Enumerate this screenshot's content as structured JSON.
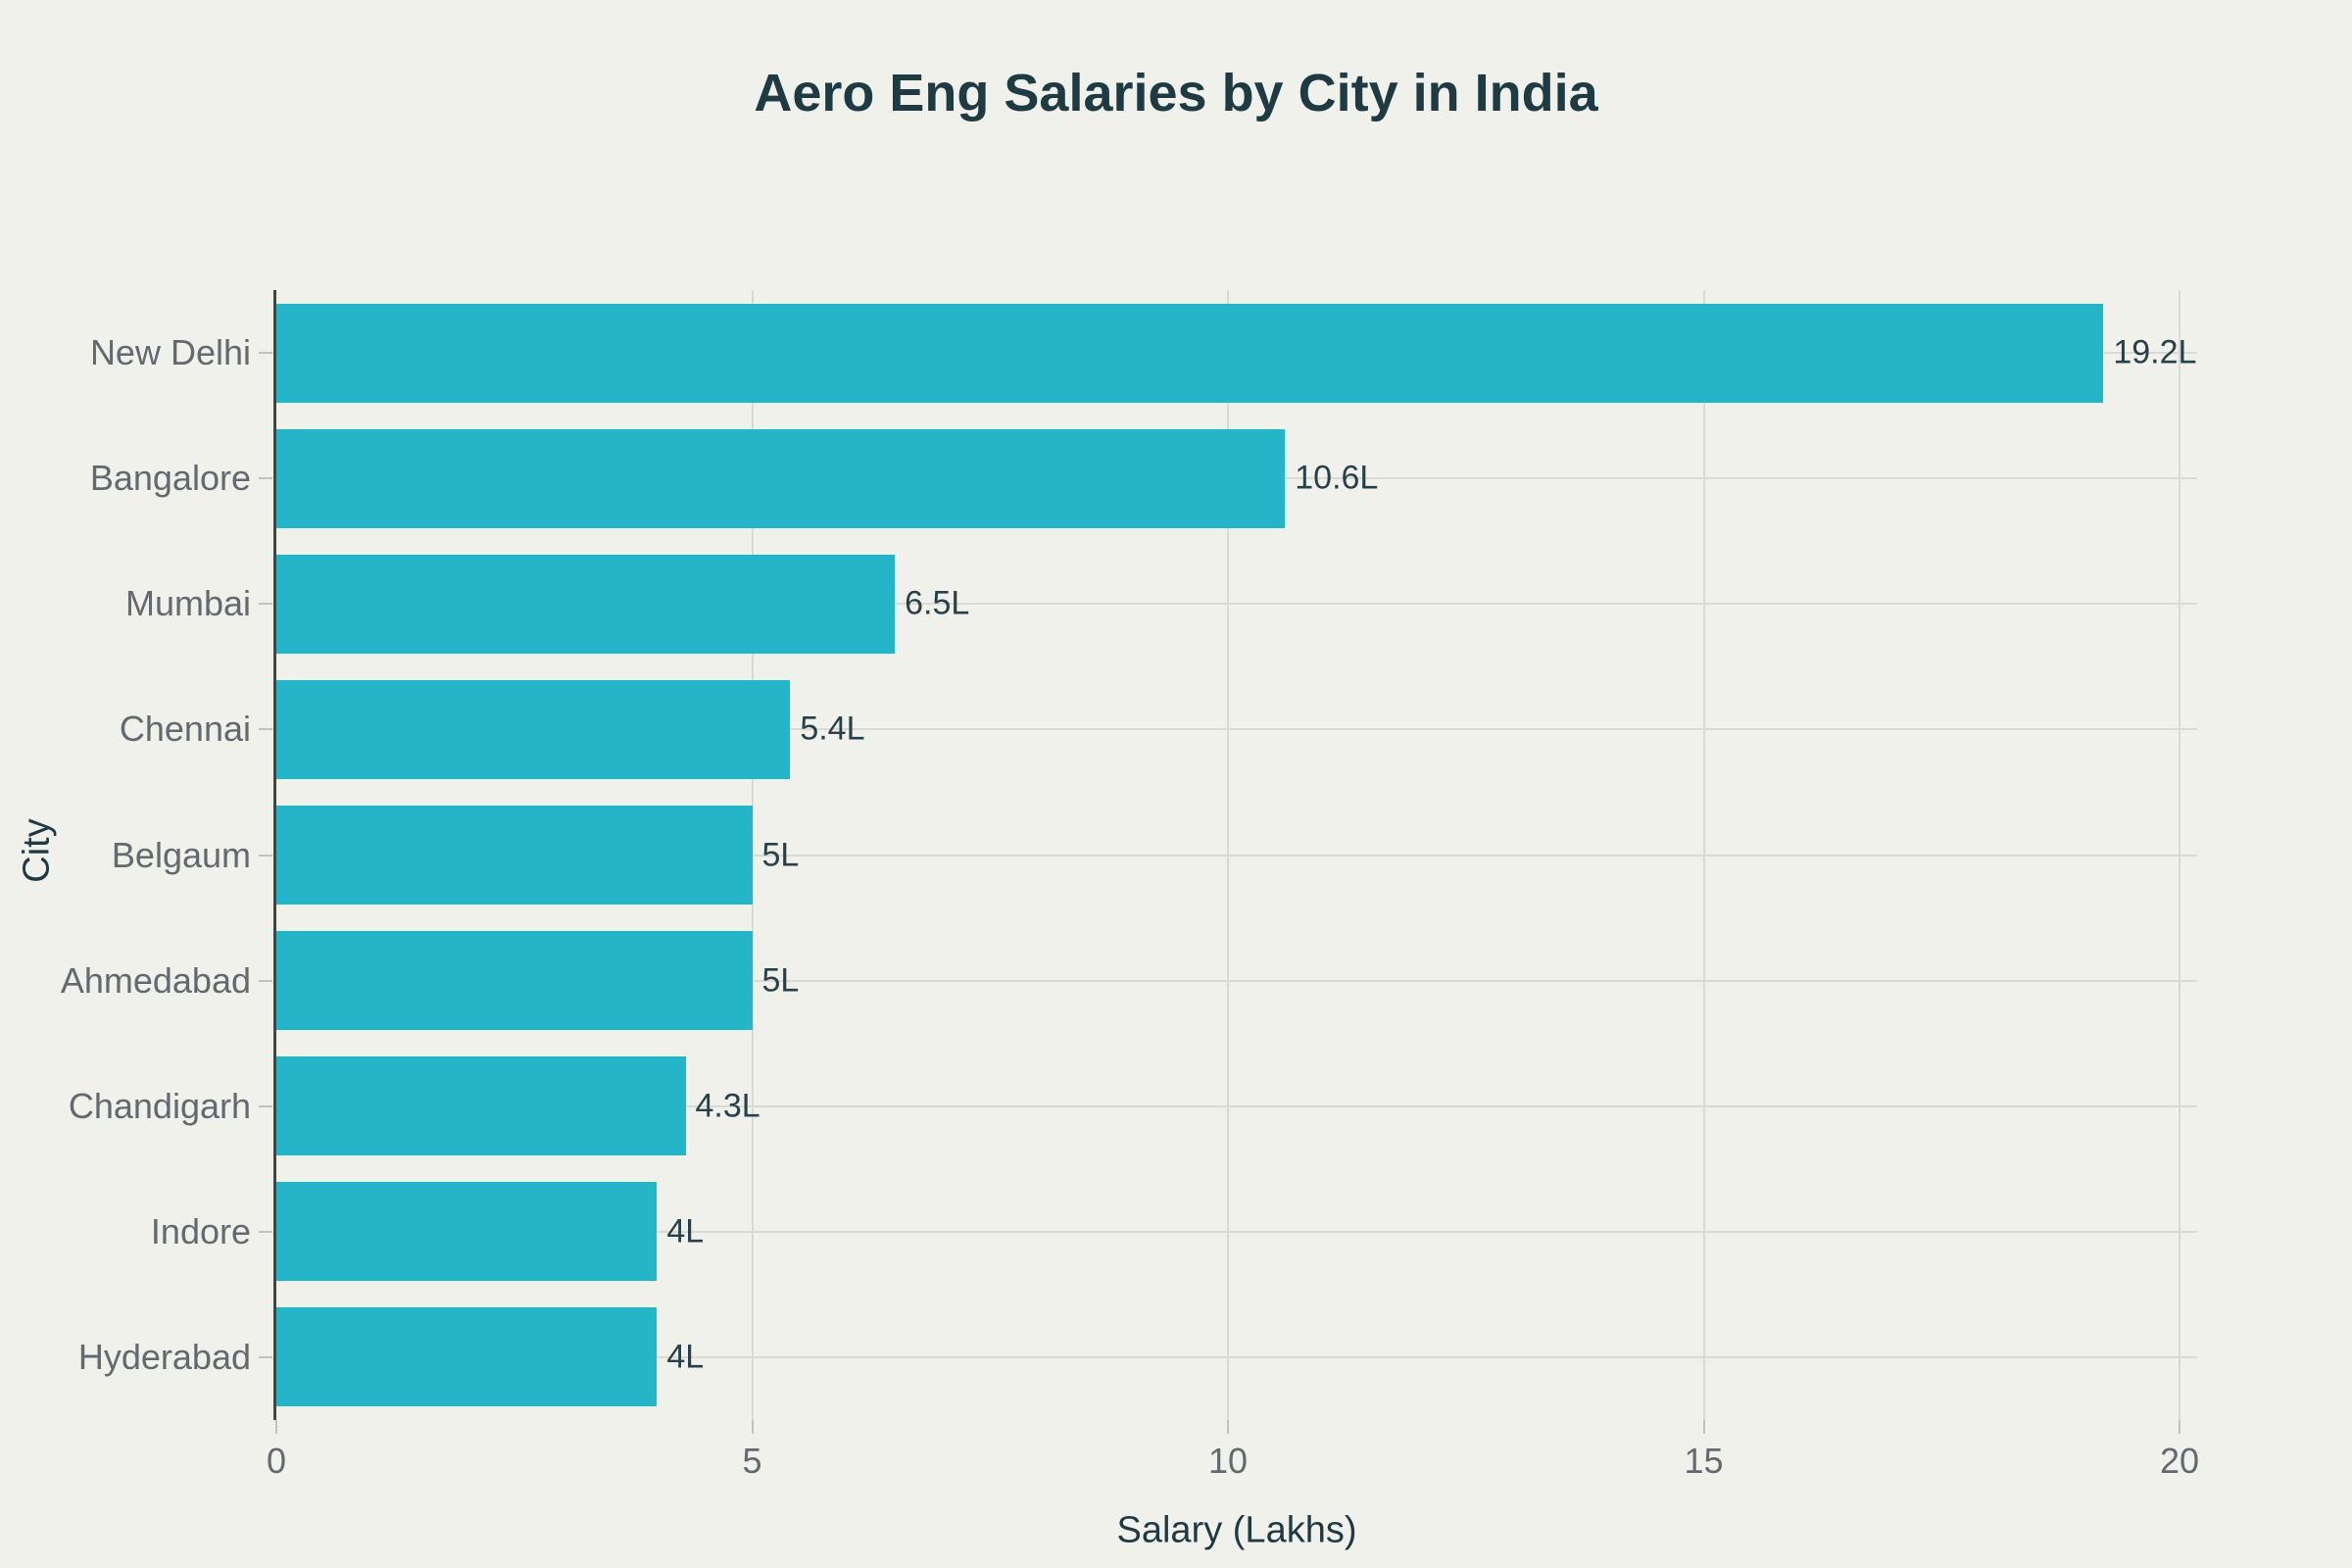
{
  "title": "Aero Eng Salaries by City in India",
  "colors": {
    "background": "#f1f1ec",
    "bar": "#24b5c9",
    "title_text": "#1e3b44",
    "axis_title_text": "#1e3b44",
    "tick_label_text": "#63696e",
    "value_label_text": "#27414a",
    "gridline": "#dadad4",
    "axis_line": "#45453f"
  },
  "chart_data": {
    "type": "bar",
    "orientation": "horizontal",
    "title": "Aero Eng Salaries by City in India",
    "xlabel": "Salary (Lakhs)",
    "ylabel": "City",
    "categories": [
      "New Delhi",
      "Bangalore",
      "Mumbai",
      "Chennai",
      "Belgaum",
      "Ahmedabad",
      "Chandigarh",
      "Indore",
      "Hyderabad"
    ],
    "values": [
      19.2,
      10.6,
      6.5,
      5.4,
      5,
      5,
      4.3,
      4,
      4
    ],
    "value_labels": [
      "19.2L",
      "10.6L",
      "6.5L",
      "5.4L",
      "5L",
      "5L",
      "4.3L",
      "4L",
      "4L"
    ],
    "xlim": [
      0,
      20.2
    ],
    "xticks": [
      0,
      5,
      10,
      15,
      20
    ],
    "xtick_labels": [
      "0",
      "5",
      "10",
      "15",
      "20"
    ],
    "grid": "vertical gridlines at x ticks, horizontal gridlines at category centers",
    "legend": "none"
  }
}
